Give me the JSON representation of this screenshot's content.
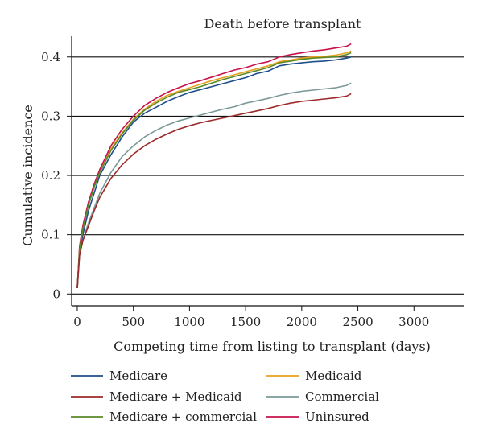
{
  "chart_data": {
    "type": "line",
    "title": "Death before transplant",
    "xlabel": "Competing time from listing to transplant (days)",
    "ylabel": "Cumulative incidence",
    "xlim": [
      -50,
      3450
    ],
    "ylim": [
      -0.02,
      0.435
    ],
    "xticks": [
      0,
      500,
      1000,
      1500,
      2000,
      2500,
      3000
    ],
    "xtick_labels": [
      "0",
      "500",
      "1000",
      "1500",
      "2000",
      "2500",
      "3000"
    ],
    "yticks": [
      0,
      0.1,
      0.2,
      0.3,
      0.4
    ],
    "ytick_labels": [
      "0",
      "0.1",
      "0.2",
      "0.3",
      "0.4"
    ],
    "grid": "horizontal",
    "legend_position": "bottom",
    "series": [
      {
        "name": "Medicare",
        "color": "#1f4e8c",
        "points": [
          [
            0,
            0.01
          ],
          [
            20,
            0.07
          ],
          [
            50,
            0.1
          ],
          [
            100,
            0.14
          ],
          [
            150,
            0.17
          ],
          [
            200,
            0.2
          ],
          [
            300,
            0.235
          ],
          [
            400,
            0.265
          ],
          [
            500,
            0.29
          ],
          [
            600,
            0.305
          ],
          [
            700,
            0.315
          ],
          [
            800,
            0.325
          ],
          [
            900,
            0.333
          ],
          [
            1000,
            0.34
          ],
          [
            1100,
            0.345
          ],
          [
            1200,
            0.35
          ],
          [
            1300,
            0.355
          ],
          [
            1400,
            0.36
          ],
          [
            1500,
            0.365
          ],
          [
            1600,
            0.372
          ],
          [
            1700,
            0.376
          ],
          [
            1800,
            0.385
          ],
          [
            1900,
            0.388
          ],
          [
            2000,
            0.39
          ],
          [
            2100,
            0.392
          ],
          [
            2200,
            0.393
          ],
          [
            2300,
            0.395
          ],
          [
            2400,
            0.398
          ],
          [
            2440,
            0.4
          ]
        ]
      },
      {
        "name": "Medicaid",
        "color": "#e8a020",
        "points": [
          [
            0,
            0.01
          ],
          [
            20,
            0.075
          ],
          [
            50,
            0.11
          ],
          [
            100,
            0.15
          ],
          [
            150,
            0.18
          ],
          [
            200,
            0.205
          ],
          [
            300,
            0.245
          ],
          [
            400,
            0.272
          ],
          [
            500,
            0.295
          ],
          [
            600,
            0.312
          ],
          [
            700,
            0.325
          ],
          [
            800,
            0.335
          ],
          [
            900,
            0.342
          ],
          [
            1000,
            0.348
          ],
          [
            1100,
            0.354
          ],
          [
            1200,
            0.36
          ],
          [
            1300,
            0.365
          ],
          [
            1400,
            0.37
          ],
          [
            1500,
            0.375
          ],
          [
            1600,
            0.38
          ],
          [
            1700,
            0.385
          ],
          [
            1800,
            0.392
          ],
          [
            1900,
            0.395
          ],
          [
            2000,
            0.398
          ],
          [
            2100,
            0.4
          ],
          [
            2200,
            0.401
          ],
          [
            2300,
            0.403
          ],
          [
            2400,
            0.407
          ],
          [
            2440,
            0.41
          ]
        ]
      },
      {
        "name": "Uninsured",
        "color": "#c8104a",
        "points": [
          [
            0,
            0.01
          ],
          [
            20,
            0.08
          ],
          [
            50,
            0.115
          ],
          [
            100,
            0.155
          ],
          [
            150,
            0.185
          ],
          [
            200,
            0.21
          ],
          [
            300,
            0.25
          ],
          [
            400,
            0.278
          ],
          [
            500,
            0.3
          ],
          [
            600,
            0.318
          ],
          [
            700,
            0.33
          ],
          [
            800,
            0.34
          ],
          [
            900,
            0.348
          ],
          [
            1000,
            0.355
          ],
          [
            1100,
            0.36
          ],
          [
            1200,
            0.366
          ],
          [
            1300,
            0.372
          ],
          [
            1400,
            0.378
          ],
          [
            1500,
            0.382
          ],
          [
            1600,
            0.388
          ],
          [
            1700,
            0.392
          ],
          [
            1800,
            0.4
          ],
          [
            1900,
            0.404
          ],
          [
            2000,
            0.407
          ],
          [
            2100,
            0.41
          ],
          [
            2200,
            0.412
          ],
          [
            2300,
            0.415
          ],
          [
            2400,
            0.418
          ],
          [
            2440,
            0.422
          ]
        ]
      },
      {
        "name": "Medicare + commercial",
        "color": "#5a8a2a",
        "points": [
          [
            0,
            0.01
          ],
          [
            20,
            0.075
          ],
          [
            50,
            0.11
          ],
          [
            100,
            0.15
          ],
          [
            150,
            0.18
          ],
          [
            200,
            0.205
          ],
          [
            300,
            0.242
          ],
          [
            400,
            0.27
          ],
          [
            500,
            0.293
          ],
          [
            600,
            0.31
          ],
          [
            700,
            0.322
          ],
          [
            800,
            0.332
          ],
          [
            900,
            0.34
          ],
          [
            1000,
            0.345
          ],
          [
            1100,
            0.35
          ],
          [
            1200,
            0.356
          ],
          [
            1300,
            0.362
          ],
          [
            1400,
            0.367
          ],
          [
            1500,
            0.372
          ],
          [
            1600,
            0.377
          ],
          [
            1700,
            0.382
          ],
          [
            1800,
            0.39
          ],
          [
            1900,
            0.393
          ],
          [
            2000,
            0.396
          ],
          [
            2100,
            0.398
          ],
          [
            2200,
            0.399
          ],
          [
            2300,
            0.4
          ],
          [
            2400,
            0.404
          ],
          [
            2440,
            0.407
          ]
        ]
      },
      {
        "name": "Commercial",
        "color": "#7a9a98",
        "points": [
          [
            0,
            0.01
          ],
          [
            20,
            0.065
          ],
          [
            50,
            0.09
          ],
          [
            100,
            0.12
          ],
          [
            150,
            0.145
          ],
          [
            200,
            0.17
          ],
          [
            300,
            0.205
          ],
          [
            400,
            0.232
          ],
          [
            500,
            0.25
          ],
          [
            600,
            0.265
          ],
          [
            700,
            0.276
          ],
          [
            800,
            0.285
          ],
          [
            900,
            0.292
          ],
          [
            1000,
            0.297
          ],
          [
            1100,
            0.302
          ],
          [
            1200,
            0.307
          ],
          [
            1300,
            0.312
          ],
          [
            1400,
            0.316
          ],
          [
            1500,
            0.322
          ],
          [
            1600,
            0.326
          ],
          [
            1700,
            0.33
          ],
          [
            1800,
            0.335
          ],
          [
            1900,
            0.339
          ],
          [
            2000,
            0.342
          ],
          [
            2100,
            0.344
          ],
          [
            2200,
            0.346
          ],
          [
            2300,
            0.348
          ],
          [
            2400,
            0.352
          ],
          [
            2440,
            0.356
          ]
        ]
      },
      {
        "name": "Medicare + Medicaid",
        "color": "#9c2a2a",
        "points": [
          [
            0,
            0.01
          ],
          [
            20,
            0.065
          ],
          [
            50,
            0.09
          ],
          [
            100,
            0.115
          ],
          [
            150,
            0.14
          ],
          [
            200,
            0.163
          ],
          [
            300,
            0.195
          ],
          [
            400,
            0.218
          ],
          [
            500,
            0.236
          ],
          [
            600,
            0.25
          ],
          [
            700,
            0.261
          ],
          [
            800,
            0.27
          ],
          [
            900,
            0.278
          ],
          [
            1000,
            0.284
          ],
          [
            1100,
            0.289
          ],
          [
            1200,
            0.293
          ],
          [
            1300,
            0.297
          ],
          [
            1400,
            0.301
          ],
          [
            1500,
            0.305
          ],
          [
            1600,
            0.309
          ],
          [
            1700,
            0.313
          ],
          [
            1800,
            0.318
          ],
          [
            1900,
            0.322
          ],
          [
            2000,
            0.325
          ],
          [
            2100,
            0.327
          ],
          [
            2200,
            0.329
          ],
          [
            2300,
            0.331
          ],
          [
            2400,
            0.334
          ],
          [
            2440,
            0.338
          ]
        ]
      }
    ]
  },
  "legend": {
    "items": [
      {
        "label": "Medicare",
        "color": "#1f4e8c"
      },
      {
        "label": "Medicaid",
        "color": "#e8a020"
      },
      {
        "label": "Medicare + Medicaid",
        "color": "#9c2a2a"
      },
      {
        "label": "Commercial",
        "color": "#7a9a98"
      },
      {
        "label": "Medicare + commercial",
        "color": "#5a8a2a"
      },
      {
        "label": "Uninsured",
        "color": "#c8104a"
      }
    ]
  }
}
